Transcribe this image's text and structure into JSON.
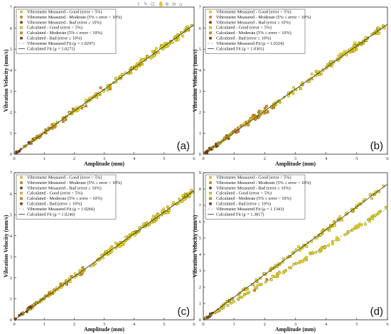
{
  "figure": {
    "toolbar_icons": [
      "export-icon",
      "brush-icon",
      "datatip-icon",
      "pan-icon",
      "zoom-in-icon",
      "zoom-out-icon",
      "home-icon"
    ]
  },
  "colors": {
    "good": "#f2e21a",
    "moderate": "#e3842a",
    "bad": "#7a3a10",
    "marker_edge": "#5a4a00",
    "fit_measured": "#aaaaaa",
    "fit_calculated": "#333333"
  },
  "chart_data": [
    {
      "type": "scatter",
      "panel_label": "(a)",
      "xlabel": "Amplitude (mm)",
      "ylabel": "Vibration Velocity (mm/s)",
      "xlim": [
        0,
        6
      ],
      "ylim": [
        0,
        7
      ],
      "xticks": [
        "0",
        "1",
        "2",
        "3",
        "4",
        "5",
        "6"
      ],
      "yticks": [
        "0",
        "1",
        "2",
        "3",
        "4",
        "5",
        "6",
        "7"
      ],
      "legend_position": "top-left",
      "legend": [
        "Vibrometer Measured - Good (error < 5%)",
        "Vibrometer Measured - Moderate (5% ≤ error < 10%)",
        "Vibrometer Measured - Bad (error ≥ 10%)",
        "Calculated - Good (error < 5%)",
        "Calculated - Moderate (5% ≤ error < 10%)",
        "Calculated - Bad (error ≥ 10%)",
        "Vibrometer Measured Fit (μ = 1.0297)",
        "Calculated Fit (μ = 1.0271)"
      ],
      "series": [
        {
          "name": "Vibrometer Measured Fit (μ = 1.0297)",
          "slope": 1.0297
        },
        {
          "name": "Calculated Fit (μ = 1.0271)",
          "slope": 1.0271
        }
      ],
      "scatter_x_range": [
        0,
        6
      ],
      "scatter_spread": 0.22
    },
    {
      "type": "scatter",
      "panel_label": "(b)",
      "xlabel": "Amplitude (mm)",
      "ylabel": "Vibration Velocity (mm/s)",
      "xlim": [
        0,
        6
      ],
      "ylim": [
        0,
        7
      ],
      "xticks": [
        "0",
        "1",
        "2",
        "3",
        "4",
        "5",
        "6"
      ],
      "yticks": [
        "0",
        "1",
        "2",
        "3",
        "4",
        "5",
        "6",
        "7"
      ],
      "legend_position": "top-left",
      "legend": [
        "Vibrometer Measured - Good (error < 5%)",
        "Vibrometer Measured - Moderate (5% ≤ error < 10%)",
        "Vibrometer Measured - Bad (error ≥ 10%)",
        "Calculated - Good (error < 5%)",
        "Calculated - Moderate (5% ≤ error < 10%)",
        "Calculated - Bad (error ≥ 10%)",
        "Vibrometer Measured Fit (μ = 1.0324)",
        "Calculated Fit (μ = 1.0301)"
      ],
      "series": [
        {
          "name": "Vibrometer Measured Fit (μ = 1.0324)",
          "slope": 1.0324
        },
        {
          "name": "Calculated Fit (μ = 1.0301)",
          "slope": 1.0301
        }
      ],
      "scatter_x_range": [
        0,
        6
      ],
      "scatter_spread": 0.25
    },
    {
      "type": "scatter",
      "panel_label": "(c)",
      "xlabel": "Amplitude (mm)",
      "ylabel": "Vibration Velocity (mm/s)",
      "xlim": [
        0,
        6
      ],
      "ylim": [
        0,
        7
      ],
      "xticks": [
        "0",
        "1",
        "2",
        "3",
        "4",
        "5",
        "6"
      ],
      "yticks": [
        "0",
        "1",
        "2",
        "3",
        "4",
        "5",
        "6",
        "7"
      ],
      "legend_position": "top-left",
      "legend": [
        "Vibrometer Measured - Good (error < 5%)",
        "Vibrometer Measured - Moderate (5% ≤ error < 10%)",
        "Vibrometer Measured - Bad (error ≥ 10%)",
        "Calculated - Good (error < 5%)",
        "Calculated - Moderate (5% ≤ error < 10%)",
        "Calculated - Bad (error ≥ 10%)",
        "Vibrometer Measured Fit (μ = 1.0266)",
        "Calculated Fit (μ = 1.0246)"
      ],
      "series": [
        {
          "name": "Vibrometer Measured Fit (μ = 1.0266)",
          "slope": 1.0266
        },
        {
          "name": "Calculated Fit (μ = 1.0246)",
          "slope": 1.0246
        }
      ],
      "scatter_x_range": [
        0,
        6
      ],
      "scatter_spread": 0.22
    },
    {
      "type": "scatter",
      "panel_label": "(d)",
      "xlabel": "Amplitude (mm)",
      "ylabel": "Vibration Velocity (mm/s)",
      "xlim": [
        0,
        6
      ],
      "ylim": [
        0,
        9
      ],
      "xticks": [
        "0",
        "1",
        "2",
        "3",
        "4",
        "5",
        "6"
      ],
      "yticks": [
        "0",
        "1",
        "2",
        "3",
        "4",
        "5",
        "6",
        "7",
        "8",
        "9"
      ],
      "legend_position": "top-left",
      "legend": [
        "Vibrometer Measured - Good (error < 5%)",
        "Vibrometer Measured - Moderate (5% ≤ error < 10%)",
        "Vibrometer Measured - Bad (error ≥ 10%)",
        "Calculated - Good (error < 5%)",
        "Calculated - Moderate (5% ≤ error < 10%)",
        "Calculated - Bad (error ≥ 10%)",
        "Vibrometer Measured Fit (μ = 1.1343)",
        "Calculated Fit (μ = 1.3817)"
      ],
      "series": [
        {
          "name": "Vibrometer Measured Fit (μ = 1.1343)",
          "slope": 1.1343
        },
        {
          "name": "Calculated Fit (μ = 1.3817)",
          "slope": 1.3817
        }
      ],
      "scatter_x_range": [
        0,
        6
      ],
      "scatter_spread": 0.2
    }
  ]
}
